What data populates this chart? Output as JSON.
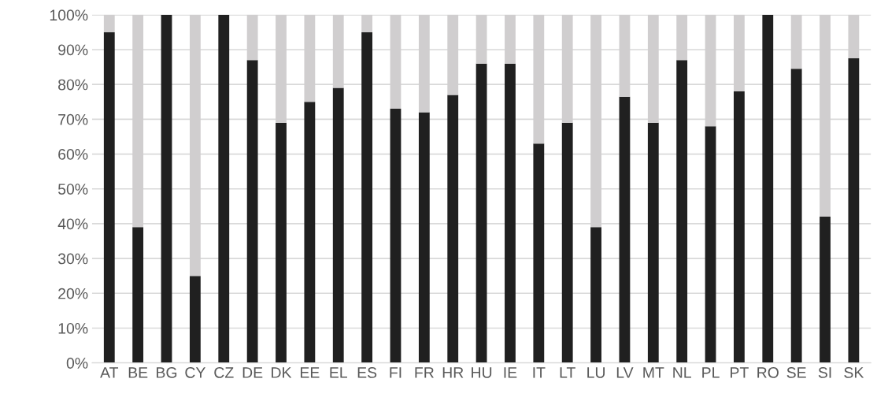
{
  "chart_data": {
    "type": "bar",
    "stacked": true,
    "categories": [
      "AT",
      "BE",
      "BG",
      "CY",
      "CZ",
      "DE",
      "DK",
      "EE",
      "EL",
      "ES",
      "FI",
      "FR",
      "HR",
      "HU",
      "IE",
      "IT",
      "LT",
      "LU",
      "LV",
      "MT",
      "NL",
      "PL",
      "PT",
      "RO",
      "SE",
      "SI",
      "SK"
    ],
    "series": [
      {
        "color": "#202020",
        "values": [
          95,
          39,
          100,
          25,
          100,
          87,
          69,
          75,
          79,
          95,
          73,
          72,
          77,
          86,
          86,
          63,
          69,
          39,
          76.5,
          69,
          87,
          68,
          78,
          100,
          84.5,
          42,
          87.5
        ]
      },
      {
        "color": "#d0cecf",
        "values": [
          5,
          61,
          0,
          75,
          0,
          13,
          31,
          25,
          21,
          5,
          27,
          28,
          23,
          14,
          14,
          37,
          31,
          61,
          23.5,
          31,
          13,
          32,
          22,
          0,
          15.5,
          58,
          12.5
        ]
      }
    ],
    "ylim": [
      0,
      100
    ],
    "yticks": [
      {
        "value": 0,
        "label": "0%"
      },
      {
        "value": 10,
        "label": "10%"
      },
      {
        "value": 20,
        "label": "20%"
      },
      {
        "value": 30,
        "label": "30%"
      },
      {
        "value": 40,
        "label": "40%"
      },
      {
        "value": 50,
        "label": "50%"
      },
      {
        "value": 60,
        "label": "60%"
      },
      {
        "value": 70,
        "label": "70%"
      },
      {
        "value": 80,
        "label": "80%"
      },
      {
        "value": 90,
        "label": "90%"
      },
      {
        "value": 100,
        "label": "100%"
      }
    ],
    "grid": "y",
    "legend": false
  }
}
